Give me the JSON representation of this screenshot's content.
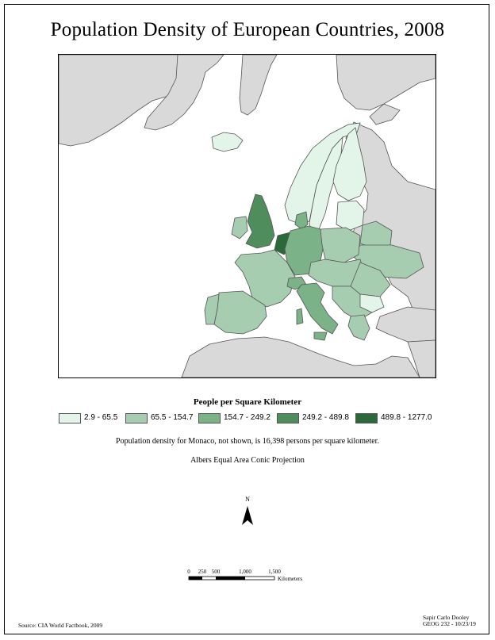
{
  "title": "Population Density of European Countries, 2008",
  "legend": {
    "title": "People per Square Kilometer",
    "classes": [
      {
        "label": "2.9 - 65.5",
        "color": "#e3f5e9"
      },
      {
        "label": "65.5 - 154.7",
        "color": "#a7cdb0"
      },
      {
        "label": "154.7 - 249.2",
        "color": "#7bb287"
      },
      {
        "label": "249.2 - 489.8",
        "color": "#4f8d5c"
      },
      {
        "label": "489.8 - 1277.0",
        "color": "#2a6a3a"
      }
    ]
  },
  "note": "Population density for Monaco, not shown, is 16,398 persons per square kilometer.",
  "projection": "Albers Equal Area Conic Projection",
  "north_label": "N",
  "scale": {
    "ticks": [
      "0",
      "250",
      "500",
      "1,000",
      "1,500"
    ],
    "unit": "Kilometers"
  },
  "source": "Source: CIA World Factbook, 2009",
  "author": {
    "name": "Sapir Carlo Dooley",
    "course": "GEOG 232 - 10/23/19"
  },
  "colors": {
    "non_europe_land": "#d9d9d9",
    "water": "#ffffff",
    "border": "#555555"
  }
}
